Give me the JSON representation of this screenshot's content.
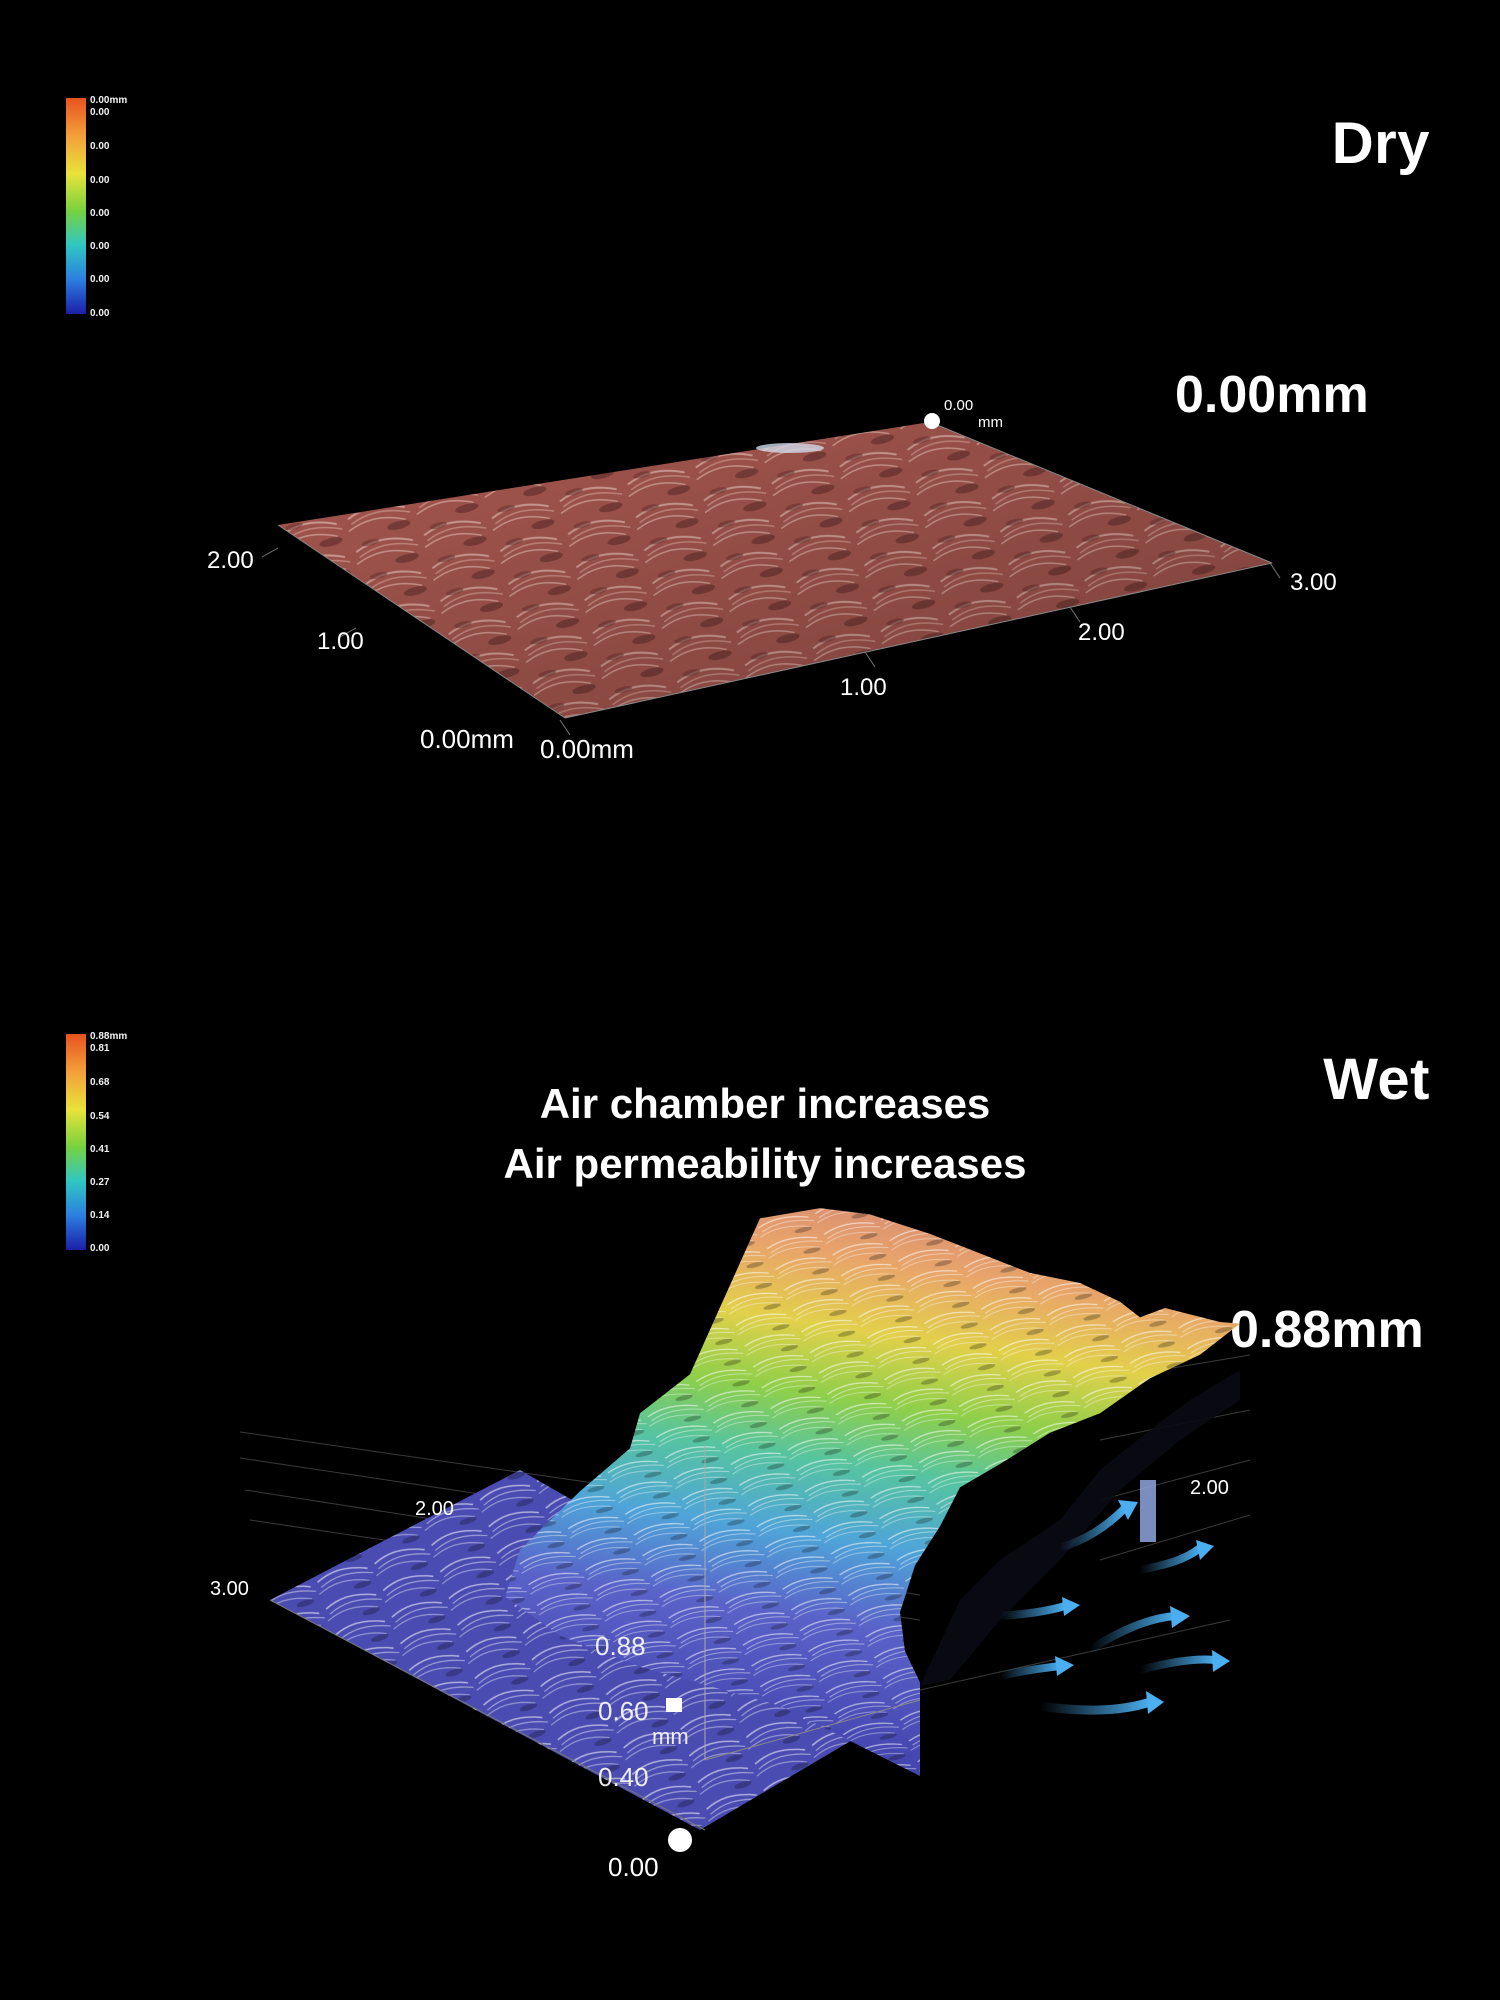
{
  "dry": {
    "label": "Dry",
    "height_readout": "0.00mm",
    "colorbar": {
      "max": "0.00mm",
      "ticks": [
        "0.00",
        "0.00",
        "0.00",
        "0.00",
        "0.00",
        "0.00",
        "0.00"
      ]
    },
    "axes": {
      "top_corner_value": "0.00",
      "top_corner_unit": "mm",
      "y_ticks": [
        "2.00",
        "1.00"
      ],
      "y_origin": "0.00mm",
      "x_origin": "0.00mm",
      "x_ticks": [
        "1.00",
        "2.00",
        "3.00"
      ]
    },
    "surface_color": "#a5574f"
  },
  "wet": {
    "label": "Wet",
    "height_readout": "0.88mm",
    "headline_line1": "Air chamber increases",
    "headline_line2": "Air permeability increases",
    "colorbar": {
      "max": "0.88mm",
      "ticks": [
        "0.81",
        "0.68",
        "0.54",
        "0.41",
        "0.27",
        "0.14",
        "0.00"
      ]
    },
    "axes": {
      "back_tick": "2.00",
      "left_ticks": [
        "2.00",
        "3.00"
      ],
      "z_ticks": [
        "0.88",
        "0.60",
        "0.40"
      ],
      "z_unit": "mm",
      "z_origin": "0.00"
    },
    "arrow_color": "#4aaef0"
  }
}
